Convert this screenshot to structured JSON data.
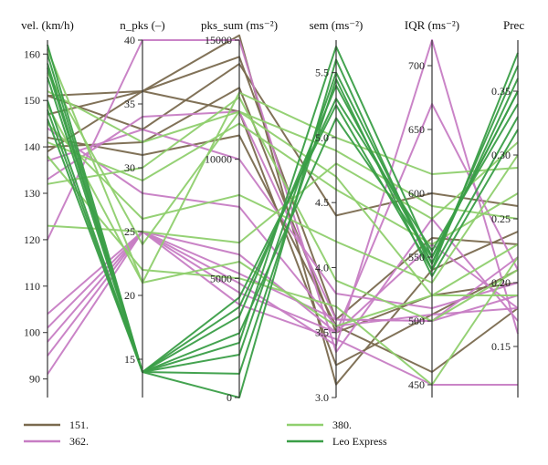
{
  "chart_data": {
    "type": "parallel-coordinates",
    "axes": [
      {
        "key": "vel",
        "label": "vel. (km/h)",
        "min": 86,
        "max": 163,
        "ticks": [
          90,
          100,
          110,
          120,
          130,
          140,
          150,
          160
        ]
      },
      {
        "key": "npks",
        "label": "n_pks (–)",
        "min": 12,
        "max": 40,
        "ticks": [
          15,
          20,
          25,
          30,
          35,
          40
        ]
      },
      {
        "key": "pks",
        "label": "pks_sum (ms⁻²)",
        "min": 0,
        "max": 15000,
        "ticks": [
          0,
          5000,
          10000,
          15000
        ],
        "tick_labels": [
          "0",
          "5000",
          "10000",
          "15000"
        ]
      },
      {
        "key": "sem",
        "label": "sem (ms⁻²)",
        "min": 3.0,
        "max": 5.75,
        "ticks": [
          3.0,
          3.5,
          4.0,
          4.5,
          5.0,
          5.5
        ],
        "tick_labels": [
          "3.0",
          "3.5",
          "4.0",
          "4.5",
          "5.0",
          "5.5"
        ]
      },
      {
        "key": "iqr",
        "label": "IQR (ms⁻²)",
        "min": 440,
        "max": 720,
        "ticks": [
          450,
          500,
          550,
          600,
          650,
          700
        ]
      },
      {
        "key": "prec",
        "label": "Prec",
        "min": 0.11,
        "max": 0.39,
        "ticks": [
          0.15,
          0.2,
          0.25,
          0.3,
          0.35
        ],
        "tick_labels": [
          "0.15",
          "0.20",
          "0.25",
          "0.30",
          "0.35"
        ]
      }
    ],
    "series": [
      {
        "name": "151.",
        "color": "#7a6a4f",
        "lines": [
          [
            151,
            36,
            15200,
            3.1,
            540,
            0.24
          ],
          [
            147,
            36,
            14300,
            3.6,
            565,
            0.23
          ],
          [
            139,
            36,
            12000,
            3.25,
            505,
            0.21
          ],
          [
            151,
            33,
            14000,
            4.4,
            600,
            0.26
          ],
          [
            140,
            32,
            13000,
            3.5,
            520,
            0.2
          ],
          [
            142,
            31,
            11000,
            3.55,
            460,
            0.18
          ]
        ]
      },
      {
        "name": "362.",
        "color": "#c77dc4",
        "lines": [
          [
            91,
            25,
            3900,
            3.45,
            450,
            0.12
          ],
          [
            95,
            25,
            4400,
            3.5,
            560,
            0.18
          ],
          [
            98,
            25,
            4800,
            3.4,
            720,
            0.16
          ],
          [
            101,
            25,
            5200,
            3.6,
            500,
            0.19
          ],
          [
            104,
            25,
            6000,
            3.5,
            670,
            0.21
          ],
          [
            120,
            40,
            15000,
            3.35,
            580,
            0.17
          ],
          [
            137,
            33,
            10000,
            3.8,
            510,
            0.2
          ],
          [
            133,
            34,
            12000,
            3.6,
            500,
            0.22
          ],
          [
            144,
            28,
            8000,
            3.55,
            505,
            0.18
          ]
        ]
      },
      {
        "name": "380.",
        "color": "#8fcf6e",
        "lines": [
          [
            123,
            25,
            6500,
            4.8,
            580,
            0.31
          ],
          [
            161,
            21,
            12800,
            5.0,
            615,
            0.29
          ],
          [
            156,
            24,
            12000,
            4.9,
            590,
            0.25
          ],
          [
            132,
            30,
            12600,
            3.9,
            500,
            0.21
          ],
          [
            152,
            32,
            12000,
            4.7,
            520,
            0.23
          ],
          [
            141,
            29,
            11500,
            4.6,
            560,
            0.27
          ],
          [
            149,
            21,
            5700,
            3.55,
            520,
            0.19
          ],
          [
            138,
            22,
            5000,
            3.7,
            450,
            0.22
          ],
          [
            145,
            26,
            8500,
            4.2,
            530,
            0.3
          ]
        ]
      },
      {
        "name": "Leo Express",
        "color": "#3a9e47",
        "lines": [
          [
            162,
            14,
            0,
            5.6,
            540,
            0.33
          ],
          [
            160,
            14,
            2300,
            5.7,
            550,
            0.35
          ],
          [
            158,
            14,
            3400,
            5.4,
            545,
            0.37
          ],
          [
            157,
            14,
            3800,
            5.3,
            555,
            0.34
          ],
          [
            155,
            14,
            4200,
            5.25,
            540,
            0.38
          ],
          [
            150,
            14,
            1800,
            5.5,
            545,
            0.36
          ],
          [
            148,
            14,
            1000,
            5.45,
            535,
            0.32
          ],
          [
            146,
            14,
            2700,
            5.15,
            550,
            0.35
          ]
        ]
      }
    ],
    "legend": {
      "position": "bottom",
      "entries": [
        "151.",
        "362.",
        "380.",
        "Leo Express"
      ]
    }
  }
}
